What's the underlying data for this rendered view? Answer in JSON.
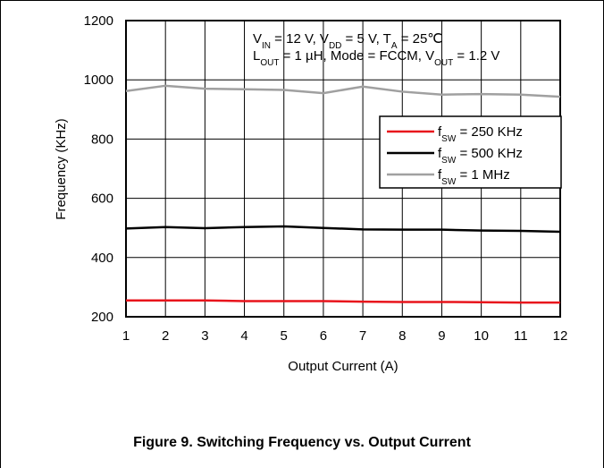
{
  "chart_data": {
    "type": "line",
    "caption": "Figure 9. Switching Frequency vs. Output Current",
    "xlabel": "Output Current (A)",
    "ylabel": "Frequency (KHz)",
    "annotations": [
      [
        "V",
        "IN",
        " = 12 V, V",
        "DD",
        " = 5 V, T",
        "A",
        " = 25℃"
      ],
      [
        "L",
        "OUT",
        " = 1 µH, Mode = FCCM, V",
        "OUT",
        " = 1.2 V"
      ]
    ],
    "x": [
      1,
      2,
      3,
      4,
      5,
      6,
      7,
      8,
      9,
      10,
      11,
      12
    ],
    "xlim": [
      1,
      12
    ],
    "xticks": [
      1,
      2,
      3,
      4,
      5,
      6,
      7,
      8,
      9,
      10,
      11,
      12
    ],
    "ylim": [
      200,
      1200
    ],
    "yticks": [
      200,
      400,
      600,
      800,
      1000,
      1200
    ],
    "grid": true,
    "series": [
      {
        "name": [
          "f",
          "SW",
          " = 250 KHz"
        ],
        "color": "#e8141c",
        "values": [
          255,
          255,
          255,
          253,
          253,
          253,
          251,
          250,
          250,
          249,
          248,
          248
        ]
      },
      {
        "name": [
          "f",
          "SW",
          " = 500 KHz"
        ],
        "color": "#000000",
        "values": [
          498,
          503,
          499,
          503,
          505,
          500,
          495,
          494,
          494,
          491,
          490,
          487
        ]
      },
      {
        "name": [
          "f",
          "SW",
          " = 1 MHz"
        ],
        "color": "#a0a0a0",
        "values": [
          962,
          980,
          970,
          968,
          966,
          955,
          977,
          960,
          950,
          952,
          950,
          943
        ]
      }
    ]
  }
}
